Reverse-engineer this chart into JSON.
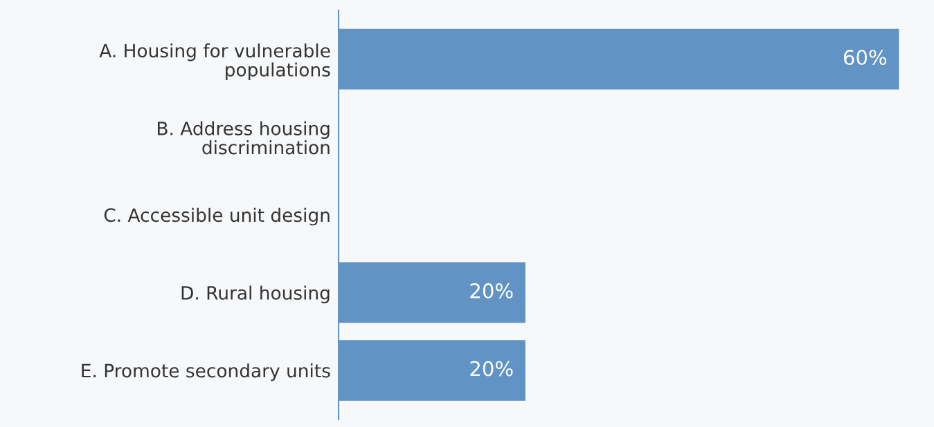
{
  "chart_data": {
    "type": "bar",
    "orientation": "horizontal",
    "categories": [
      "A. Housing for vulnerable\npopulations",
      "B. Address housing\ndiscrimination",
      "C. Accessible unit design",
      "D. Rural housing",
      "E. Promote secondary units"
    ],
    "values": [
      60,
      0,
      0,
      20,
      20
    ],
    "value_labels": [
      "60%",
      null,
      null,
      "20%",
      "20%"
    ],
    "color": "#6194c4",
    "grid": false,
    "legend": false
  }
}
